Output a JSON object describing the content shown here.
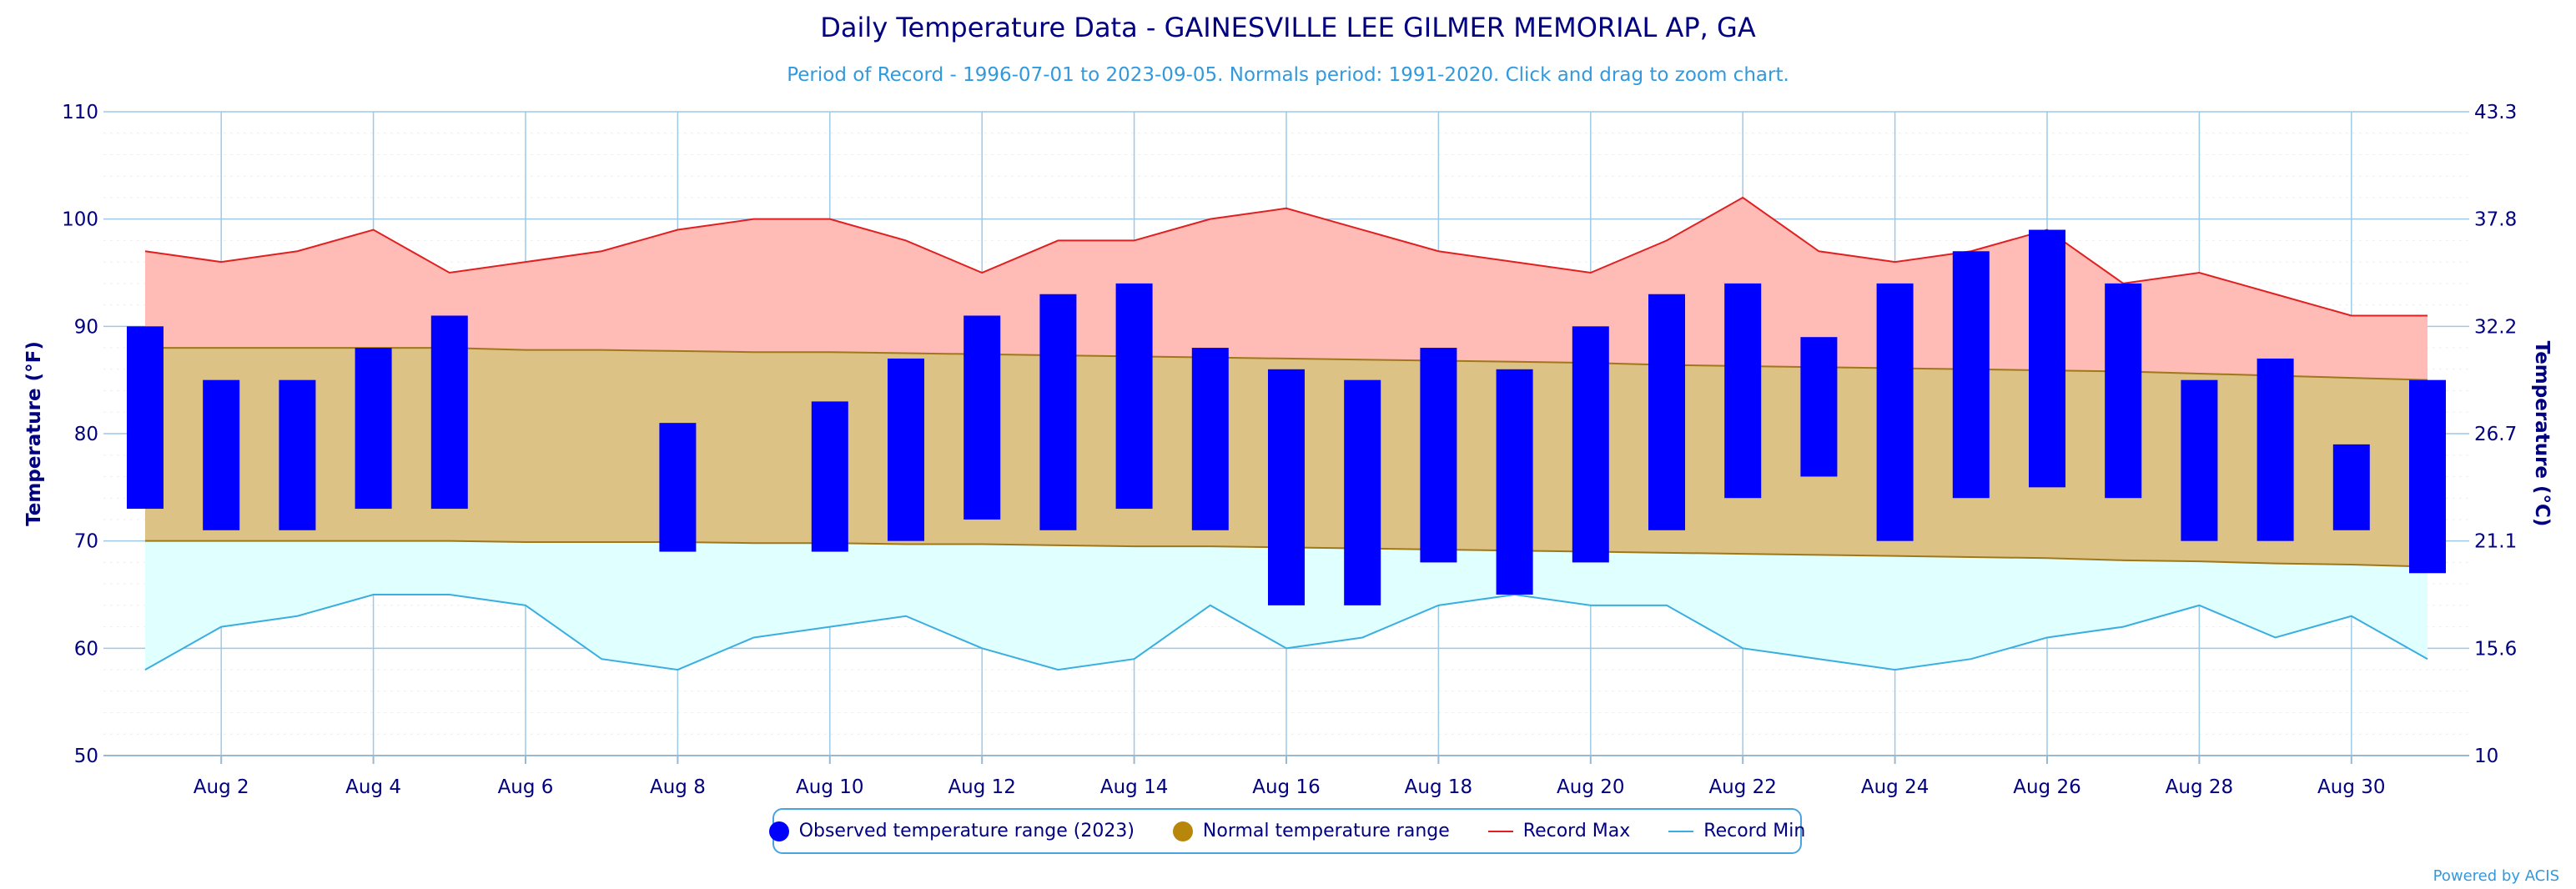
{
  "chart_data": {
    "type": "bar",
    "title": "Daily Temperature Data - GAINESVILLE LEE GILMER MEMORIAL AP, GA",
    "subtitle": "Period of Record - 1996-07-01 to 2023-09-05. Normals period: 1991-2020. Click and drag to zoom chart.",
    "ylabel": "Temperature (°F)",
    "y2label": "Temperature (°C)",
    "ylim": [
      50,
      110
    ],
    "xlim": [
      1,
      31
    ],
    "y_ticks": [
      "50",
      "60",
      "70",
      "80",
      "90",
      "100",
      "110"
    ],
    "y2_ticks": [
      "10",
      "15.6",
      "21.1",
      "26.7",
      "32.2",
      "37.8",
      "43.3"
    ],
    "x_ticks": [
      {
        "day": 2,
        "label": "Aug 2"
      },
      {
        "day": 4,
        "label": "Aug 4"
      },
      {
        "day": 6,
        "label": "Aug 6"
      },
      {
        "day": 8,
        "label": "Aug 8"
      },
      {
        "day": 10,
        "label": "Aug 10"
      },
      {
        "day": 12,
        "label": "Aug 12"
      },
      {
        "day": 14,
        "label": "Aug 14"
      },
      {
        "day": 16,
        "label": "Aug 16"
      },
      {
        "day": 18,
        "label": "Aug 18"
      },
      {
        "day": 20,
        "label": "Aug 20"
      },
      {
        "day": 22,
        "label": "Aug 22"
      },
      {
        "day": 24,
        "label": "Aug 24"
      },
      {
        "day": 26,
        "label": "Aug 26"
      },
      {
        "day": 28,
        "label": "Aug 28"
      },
      {
        "day": 30,
        "label": "Aug 30"
      }
    ],
    "grid": true,
    "legend_position": "bottom-center",
    "days": [
      1,
      2,
      3,
      4,
      5,
      6,
      7,
      8,
      9,
      10,
      11,
      12,
      13,
      14,
      15,
      16,
      17,
      18,
      19,
      20,
      21,
      22,
      23,
      24,
      25,
      26,
      27,
      28,
      29,
      30,
      31
    ],
    "record_max": [
      97,
      96,
      97,
      99,
      95,
      96,
      97,
      99,
      100,
      100,
      98,
      95,
      98,
      98,
      100,
      101,
      99,
      97,
      96,
      95,
      98,
      102,
      97,
      96,
      97,
      99,
      94,
      95,
      93,
      91,
      91
    ],
    "record_min": [
      58,
      62,
      63,
      65,
      65,
      64,
      59,
      58,
      61,
      62,
      63,
      60,
      58,
      59,
      64,
      60,
      61,
      64,
      65,
      64,
      64,
      60,
      59,
      58,
      59,
      61,
      62,
      64,
      61,
      63,
      59
    ],
    "normal_max": [
      88,
      88,
      88,
      88,
      88,
      87.8,
      87.8,
      87.7,
      87.6,
      87.6,
      87.5,
      87.4,
      87.3,
      87.2,
      87.1,
      87,
      86.9,
      86.8,
      86.7,
      86.6,
      86.4,
      86.3,
      86.2,
      86.1,
      86,
      85.9,
      85.8,
      85.6,
      85.4,
      85.2,
      85
    ],
    "normal_min": [
      70,
      70,
      70,
      70,
      70,
      69.9,
      69.9,
      69.9,
      69.8,
      69.8,
      69.7,
      69.7,
      69.6,
      69.5,
      69.5,
      69.4,
      69.3,
      69.2,
      69.1,
      69,
      68.9,
      68.8,
      68.7,
      68.6,
      68.5,
      68.4,
      68.2,
      68.1,
      67.9,
      67.8,
      67.6
    ],
    "observed": [
      {
        "day": 1,
        "min": 73,
        "max": 90
      },
      {
        "day": 2,
        "min": 71,
        "max": 85
      },
      {
        "day": 3,
        "min": 71,
        "max": 85
      },
      {
        "day": 4,
        "min": 73,
        "max": 88
      },
      {
        "day": 5,
        "min": 73,
        "max": 91
      },
      {
        "day": 8,
        "min": 69,
        "max": 81
      },
      {
        "day": 10,
        "min": 69,
        "max": 83
      },
      {
        "day": 11,
        "min": 70,
        "max": 87
      },
      {
        "day": 12,
        "min": 72,
        "max": 91
      },
      {
        "day": 13,
        "min": 71,
        "max": 93
      },
      {
        "day": 14,
        "min": 73,
        "max": 94
      },
      {
        "day": 15,
        "min": 71,
        "max": 88
      },
      {
        "day": 16,
        "min": 64,
        "max": 86
      },
      {
        "day": 17,
        "min": 64,
        "max": 85
      },
      {
        "day": 18,
        "min": 68,
        "max": 88
      },
      {
        "day": 19,
        "min": 65,
        "max": 86
      },
      {
        "day": 20,
        "min": 68,
        "max": 90
      },
      {
        "day": 21,
        "min": 71,
        "max": 93
      },
      {
        "day": 22,
        "min": 74,
        "max": 94
      },
      {
        "day": 23,
        "min": 76,
        "max": 89
      },
      {
        "day": 24,
        "min": 70,
        "max": 94
      },
      {
        "day": 25,
        "min": 74,
        "max": 97
      },
      {
        "day": 26,
        "min": 75,
        "max": 99
      },
      {
        "day": 27,
        "min": 74,
        "max": 94
      },
      {
        "day": 28,
        "min": 70,
        "max": 85
      },
      {
        "day": 29,
        "min": 70,
        "max": 87
      },
      {
        "day": 30,
        "min": 71,
        "max": 79
      },
      {
        "day": 31,
        "min": 67,
        "max": 85
      }
    ],
    "series": [
      {
        "name": "Observed temperature range (2023)",
        "color": "#0000ff",
        "swatch": "dot"
      },
      {
        "name": "Normal temperature range",
        "color": "#b8860b",
        "swatch": "dot"
      },
      {
        "name": "Record Max",
        "color": "#e02020",
        "swatch": "line"
      },
      {
        "name": "Record Min",
        "color": "#3aaee0",
        "swatch": "line"
      }
    ],
    "colors": {
      "record_max_fill": "#ffbbb6",
      "normal_fill": "#dcc285",
      "normal_line": "#a0781a",
      "record_min_fill": "#e0ffff",
      "grid": "#9ec9e6",
      "axis_text": "#000080"
    },
    "credit": "Powered by ACIS"
  }
}
